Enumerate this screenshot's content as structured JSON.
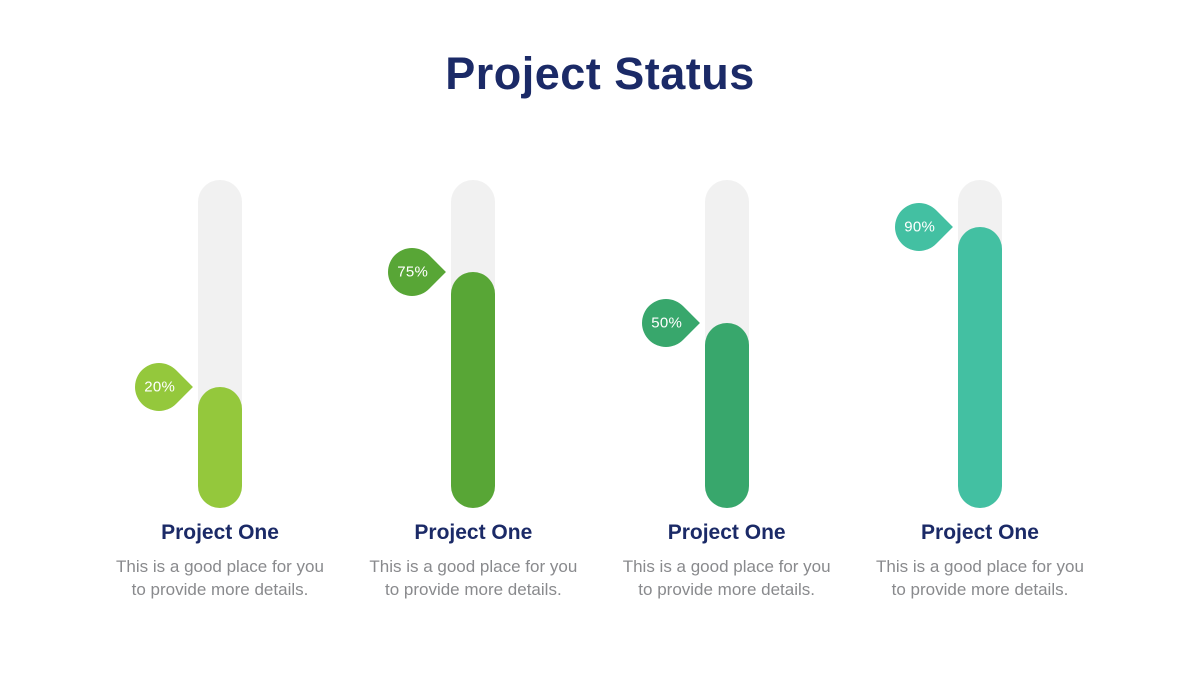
{
  "slide": {
    "background_color": "#ffffff",
    "title_color": "#1b2a67",
    "subtitle_color": "#898a8d",
    "track_color": "#f1f1f1"
  },
  "chart_data": {
    "type": "bar",
    "title": "Project Status",
    "orientation": "vertical-progress-bars",
    "legend": "none",
    "grid": "off",
    "items": [
      {
        "label": "Project One",
        "percent": 20,
        "percent_label": "20%",
        "color": "#94c83c",
        "fill_ratio": 0.37,
        "desc_lines": [
          "This is a good place for you",
          "to provide more details."
        ]
      },
      {
        "label": "Project One",
        "percent": 75,
        "percent_label": "75%",
        "color": "#58a636",
        "fill_ratio": 0.72,
        "desc_lines": [
          "This is a good place for you",
          "to provide more details."
        ]
      },
      {
        "label": "Project One",
        "percent": 50,
        "percent_label": "50%",
        "color": "#38a76c",
        "fill_ratio": 0.565,
        "desc_lines": [
          "This is a good place for you",
          "to provide more details."
        ]
      },
      {
        "label": "Project One",
        "percent": 90,
        "percent_label": "90%",
        "color": "#43c0a2",
        "fill_ratio": 0.857,
        "desc_lines": [
          "This is a good place for you",
          "to provide more details."
        ]
      }
    ]
  }
}
